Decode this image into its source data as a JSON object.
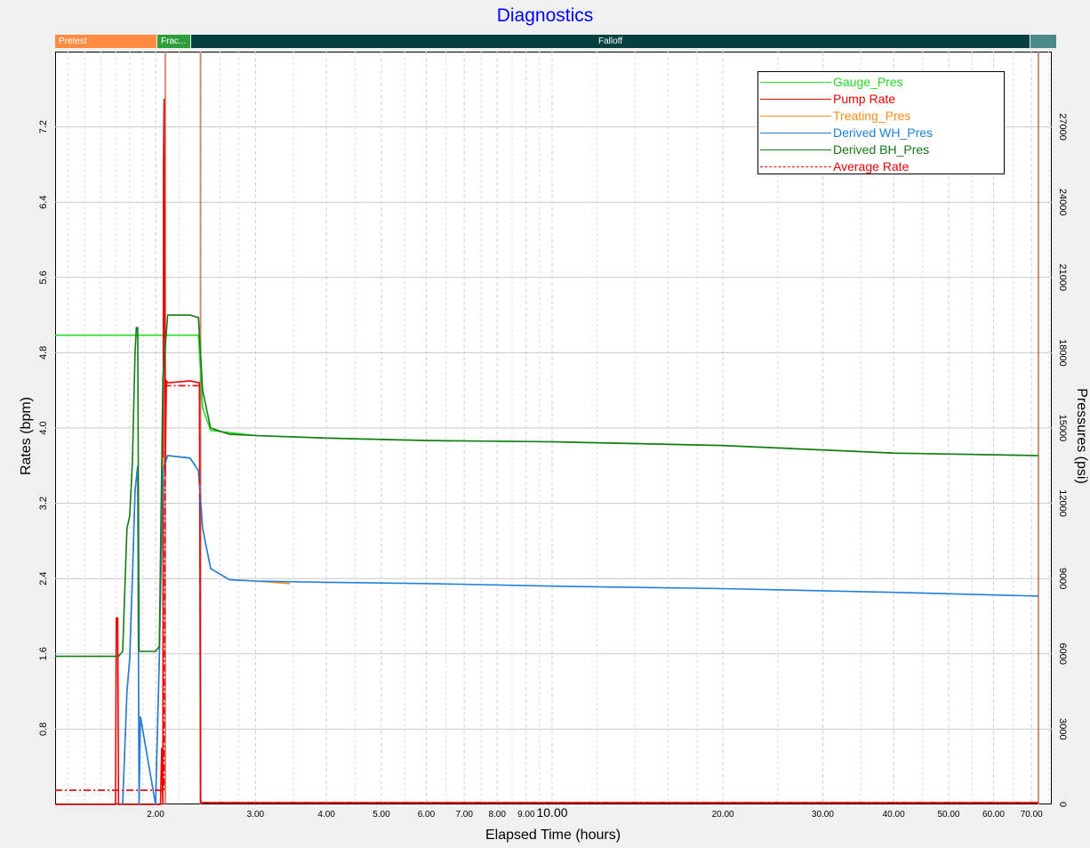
{
  "window": {
    "title": "Diagnostics"
  },
  "stages": [
    {
      "label": "Pretest",
      "color": "#ff8c42"
    },
    {
      "label": "Frac...",
      "color": "#2e9e3b"
    },
    {
      "label": "Falloff",
      "color": "#063f3f"
    },
    {
      "label": "",
      "color": "#4a8a8a"
    }
  ],
  "chart_data": {
    "type": "line",
    "title": "Diagnostics",
    "xlabel": "Elapsed Time (hours)",
    "ylabel": "Rates (bpm)",
    "y2label": "Pressures (psi)",
    "xscale": "log",
    "xlim": [
      1.33,
      76
    ],
    "ylim": [
      0,
      8.0
    ],
    "y2lim": [
      0,
      30000
    ],
    "xticks": [
      2,
      3,
      4,
      5,
      6,
      7,
      8,
      9,
      10,
      20,
      30,
      40,
      50,
      60,
      70
    ],
    "xtick_labels": [
      "2.00",
      "3.00",
      "4.00",
      "5.00",
      "6.00",
      "7.00",
      "8.00",
      "9.00",
      "10.00",
      "20.00",
      "30.00",
      "40.00",
      "50.00",
      "60.00",
      "70.00"
    ],
    "yticks": [
      0.8,
      1.6,
      2.4,
      3.2,
      4.0,
      4.8,
      5.6,
      6.4,
      7.2
    ],
    "ytick_labels": [
      "0.8",
      "1.6",
      "2.4",
      "3.2",
      "4.0",
      "4.8",
      "5.6",
      "6.4",
      "7.2"
    ],
    "y2ticks": [
      0,
      3000,
      6000,
      9000,
      12000,
      15000,
      18000,
      21000,
      24000,
      27000
    ],
    "y2tick_labels": [
      "0",
      "3000",
      "6000",
      "9000",
      "12000",
      "15000",
      "18000",
      "21000",
      "24000",
      "27000"
    ],
    "grid": true,
    "legend": "top-right",
    "stage_markers_hours": [
      2.08,
      2.4,
      72.0
    ],
    "series": [
      {
        "name": "Gauge_Pres",
        "axis": "right",
        "color": "#22dd22",
        "style": "solid",
        "x": [
          1.33,
          2.38,
          2.42,
          2.5,
          3,
          4,
          6,
          10,
          20,
          40,
          72
        ],
        "y": [
          18700,
          18700,
          15800,
          14900,
          14700,
          14600,
          14500,
          14450,
          14300,
          14000,
          13900
        ]
      },
      {
        "name": "Pump Rate",
        "axis": "left",
        "color": "#ee0000",
        "style": "solid",
        "x": [
          1.33,
          1.7,
          1.705,
          1.715,
          1.72,
          1.95,
          2.04,
          2.05,
          2.06,
          2.065,
          2.07,
          2.08,
          2.085,
          2.09,
          2.1,
          2.3,
          2.39,
          2.4,
          2.41,
          72
        ],
        "y": [
          0,
          0,
          1.98,
          1.98,
          0,
          0,
          0,
          0.6,
          0,
          6.8,
          7.5,
          3.5,
          4.1,
          4.5,
          4.48,
          4.5,
          4.48,
          0.04,
          0.02,
          0.02
        ]
      },
      {
        "name": "Treating_Pres",
        "axis": "right",
        "color": "#ff8c1a",
        "style": "solid",
        "x": [
          1.75,
          1.78,
          1.8,
          1.82,
          1.84,
          1.86,
          1.87,
          1.88,
          2.0,
          2.03,
          2.06,
          2.1,
          2.3,
          2.38,
          2.42,
          2.5,
          2.7,
          3.0,
          3.45
        ],
        "y": [
          0,
          4500,
          5800,
          9000,
          12500,
          13500,
          0,
          3500,
          0,
          5800,
          13800,
          13900,
          13800,
          13300,
          11000,
          9400,
          8950,
          8900,
          8800
        ]
      },
      {
        "name": "Derived WH_Pres",
        "axis": "right",
        "color": "#1e7fe0",
        "style": "solid",
        "x": [
          1.75,
          1.78,
          1.8,
          1.82,
          1.84,
          1.86,
          1.87,
          1.88,
          2.0,
          2.03,
          2.06,
          2.1,
          2.3,
          2.38,
          2.42,
          2.5,
          2.7,
          3.0,
          4,
          6,
          10,
          20,
          40,
          72
        ],
        "y": [
          0,
          4500,
          5800,
          9000,
          12500,
          13500,
          0,
          3500,
          0,
          5800,
          13300,
          13900,
          13800,
          13300,
          11000,
          9400,
          8950,
          8900,
          8850,
          8800,
          8700,
          8600,
          8450,
          8300
        ]
      },
      {
        "name": "Derived BH_Pres",
        "axis": "right",
        "color": "#157a15",
        "style": "solid",
        "x": [
          1.33,
          1.72,
          1.75,
          1.78,
          1.8,
          1.82,
          1.84,
          1.85,
          1.86,
          1.87,
          1.88,
          2.0,
          2.03,
          2.06,
          2.1,
          2.3,
          2.38,
          2.42,
          2.5,
          2.7,
          3.0,
          4,
          6,
          10,
          20,
          40,
          72
        ],
        "y": [
          5900,
          5900,
          6100,
          11000,
          11500,
          13600,
          18000,
          19000,
          19000,
          6100,
          6100,
          6100,
          6300,
          17000,
          19500,
          19500,
          19400,
          16500,
          15000,
          14750,
          14700,
          14600,
          14500,
          14450,
          14300,
          14000,
          13900
        ]
      },
      {
        "name": "Average Rate",
        "axis": "left",
        "color": "#ee0000",
        "style": "dashdot",
        "x": [
          1.33,
          2.07,
          2.08,
          2.39,
          2.4,
          72
        ],
        "y": [
          0.15,
          0.15,
          4.45,
          4.45,
          0.02,
          0.02
        ]
      }
    ]
  }
}
